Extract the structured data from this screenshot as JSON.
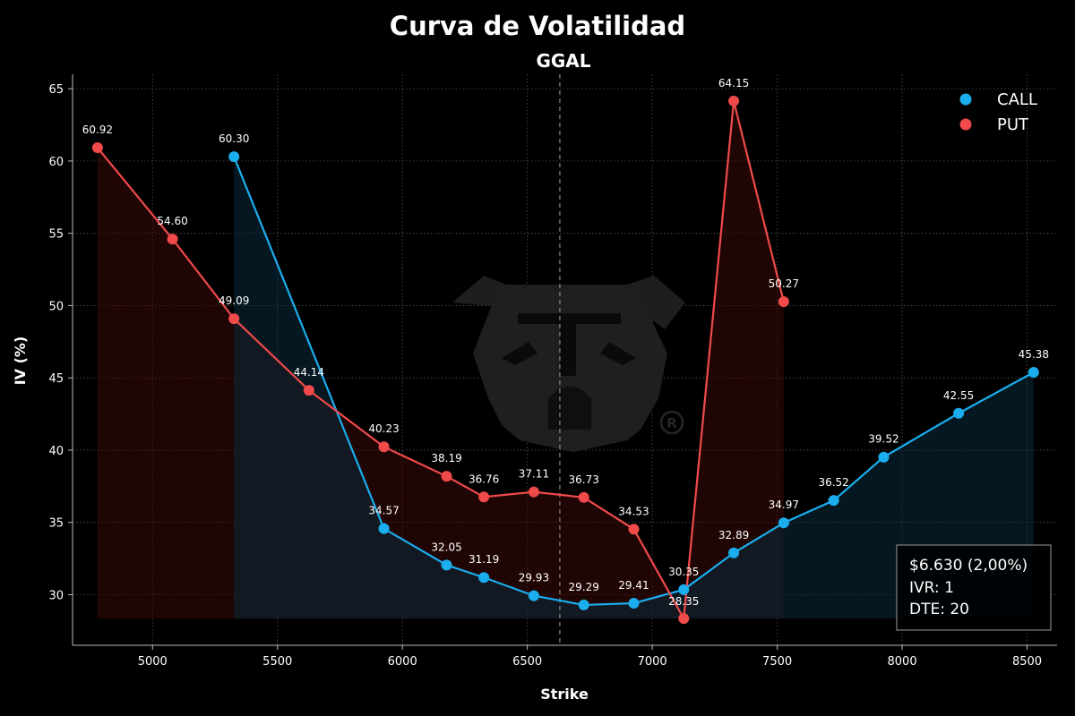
{
  "colors": {
    "background": "#000000",
    "call": "#1AAEEE",
    "put": "#F04A4A",
    "call_fill": "#0A2A3D",
    "put_fill": "#3A0A0A",
    "grid": "#555555",
    "watermark": "#2A2A2A"
  },
  "watermark": {
    "icon": "bulldog-logo-icon"
  },
  "info_box": {
    "price": "$6.630 (2,00%)",
    "ivr": "IVR: 1",
    "dte": "DTE: 20"
  },
  "chart_data": {
    "type": "line",
    "title": "Curva de Volatilidad",
    "subtitle": "GGAL",
    "xlabel": "Strike",
    "ylabel": "IV (%)",
    "xlim": [
      4680,
      8620
    ],
    "ylim": [
      26.5,
      66
    ],
    "xticks": [
      5000,
      5500,
      6000,
      6500,
      7000,
      7500,
      8000,
      8500
    ],
    "yticks": [
      30,
      35,
      40,
      45,
      50,
      55,
      60,
      65
    ],
    "grid": true,
    "legend_position": "top-right",
    "spot": 6630,
    "fill_baseline": 28.35,
    "series": [
      {
        "name": "CALL",
        "x": [
          5326,
          5926,
          6177,
          6326,
          6526,
          6726,
          6926,
          7126,
          7326,
          7526,
          7726,
          7926,
          8226,
          8526
        ],
        "values": [
          60.3,
          34.57,
          32.05,
          31.19,
          29.93,
          29.29,
          29.41,
          30.35,
          32.89,
          34.97,
          36.52,
          39.52,
          42.55,
          45.38
        ],
        "labels": [
          "60.30",
          "34.57",
          "32.05",
          "31.19",
          "29.93",
          "29.29",
          "29.41",
          "30.35",
          "32.89",
          "34.97",
          "36.52",
          "39.52",
          "42.55",
          "45.38"
        ]
      },
      {
        "name": "PUT",
        "x": [
          4780,
          5080,
          5326,
          5626,
          5926,
          6177,
          6326,
          6526,
          6726,
          6926,
          7126,
          7326,
          7526
        ],
        "values": [
          60.92,
          54.6,
          49.09,
          44.14,
          40.23,
          38.19,
          36.76,
          37.11,
          36.73,
          34.53,
          28.35,
          64.15,
          50.27
        ],
        "labels": [
          "60.92",
          "54.60",
          "49.09",
          "44.14",
          "40.23",
          "38.19",
          "36.76",
          "37.11",
          "36.73",
          "34.53",
          "28.35",
          "64.15",
          "50.27"
        ]
      }
    ]
  }
}
